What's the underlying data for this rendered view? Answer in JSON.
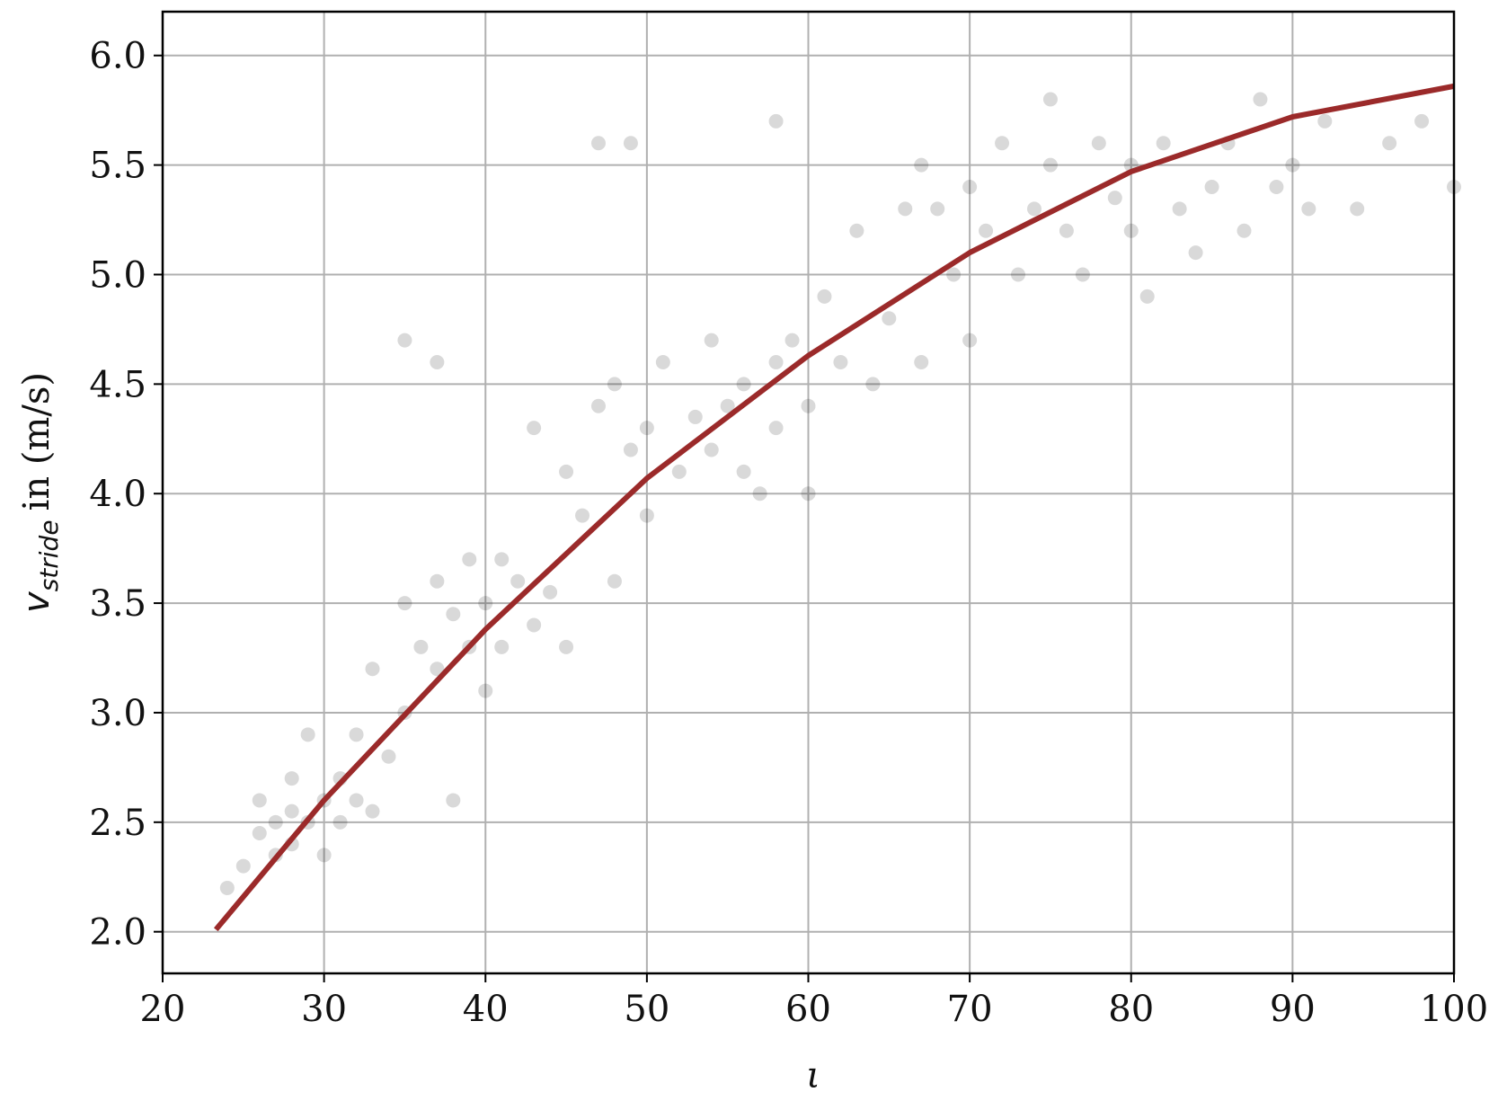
{
  "chart_data": {
    "type": "scatter",
    "xlabel": "ι",
    "ylabel": {
      "symbol": "v",
      "subscript": "stride",
      "rest": "in (m/s)"
    },
    "xlim": [
      20,
      100
    ],
    "ylim": [
      1.81,
      6.2
    ],
    "xticks": [
      20,
      30,
      40,
      50,
      60,
      70,
      80,
      90,
      100
    ],
    "yticks": [
      {
        "value": 2,
        "label": "2.0"
      },
      {
        "value": 2.5,
        "label": "2.5"
      },
      {
        "value": 3,
        "label": "3.0"
      },
      {
        "value": 3.5,
        "label": "3.5"
      },
      {
        "value": 4,
        "label": "4.0"
      },
      {
        "value": 4.5,
        "label": "4.5"
      },
      {
        "value": 5,
        "label": "5.0"
      },
      {
        "value": 5.5,
        "label": "5.5"
      },
      {
        "value": 6,
        "label": "6.0"
      }
    ],
    "grid": true,
    "series": [
      {
        "type": "scatter",
        "color": "#000000",
        "alpha": 0.15,
        "x": [
          24,
          25,
          26,
          26,
          27,
          27,
          28,
          28,
          28,
          29,
          29,
          30,
          30,
          31,
          31,
          32,
          32,
          33,
          33,
          34,
          35,
          35,
          36,
          37,
          37,
          38,
          38,
          39,
          39,
          40,
          40,
          41,
          41,
          42,
          43,
          43,
          44,
          45,
          45,
          46,
          47,
          48,
          48,
          49,
          50,
          50,
          51,
          52,
          53,
          54,
          54,
          55,
          56,
          56,
          57,
          58,
          58,
          59,
          60,
          60,
          61,
          62,
          63,
          64,
          65,
          66,
          67,
          67,
          68,
          69,
          70,
          70,
          71,
          72,
          73,
          74,
          75,
          75,
          76,
          77,
          78,
          79,
          80,
          80,
          81,
          82,
          83,
          84,
          85,
          86,
          87,
          88,
          89,
          90,
          91,
          92,
          94,
          96,
          98,
          100,
          35,
          37,
          47,
          49,
          58
        ],
        "values": [
          2.2,
          2.3,
          2.45,
          2.6,
          2.5,
          2.35,
          2.55,
          2.7,
          2.4,
          2.5,
          2.9,
          2.6,
          2.35,
          2.7,
          2.5,
          2.6,
          2.9,
          2.55,
          3.2,
          2.8,
          3.0,
          3.5,
          3.3,
          3.6,
          3.2,
          3.45,
          2.6,
          3.7,
          3.3,
          3.5,
          3.1,
          3.3,
          3.7,
          3.6,
          3.4,
          4.3,
          3.55,
          3.3,
          4.1,
          3.9,
          4.4,
          4.5,
          3.6,
          4.2,
          4.3,
          3.9,
          4.6,
          4.1,
          4.35,
          4.2,
          4.7,
          4.4,
          4.1,
          4.5,
          4.0,
          4.6,
          4.3,
          4.7,
          4.4,
          4.0,
          4.9,
          4.6,
          5.2,
          4.5,
          4.8,
          5.3,
          5.5,
          4.6,
          5.3,
          5.0,
          5.4,
          4.7,
          5.2,
          5.6,
          5.0,
          5.3,
          5.8,
          5.5,
          5.2,
          5.0,
          5.6,
          5.35,
          5.2,
          5.5,
          4.9,
          5.6,
          5.3,
          5.1,
          5.4,
          5.6,
          5.2,
          5.8,
          5.4,
          5.5,
          5.3,
          5.7,
          5.3,
          5.6,
          5.7,
          5.4,
          4.7,
          4.6,
          5.6,
          5.6,
          5.7
        ]
      },
      {
        "type": "line",
        "color": "#9b2a2a",
        "x": [
          23.3,
          30,
          40,
          50,
          60,
          70,
          80,
          90,
          100
        ],
        "values": [
          2.01,
          2.6,
          3.38,
          4.07,
          4.63,
          5.1,
          5.47,
          5.72,
          5.86
        ]
      }
    ]
  }
}
